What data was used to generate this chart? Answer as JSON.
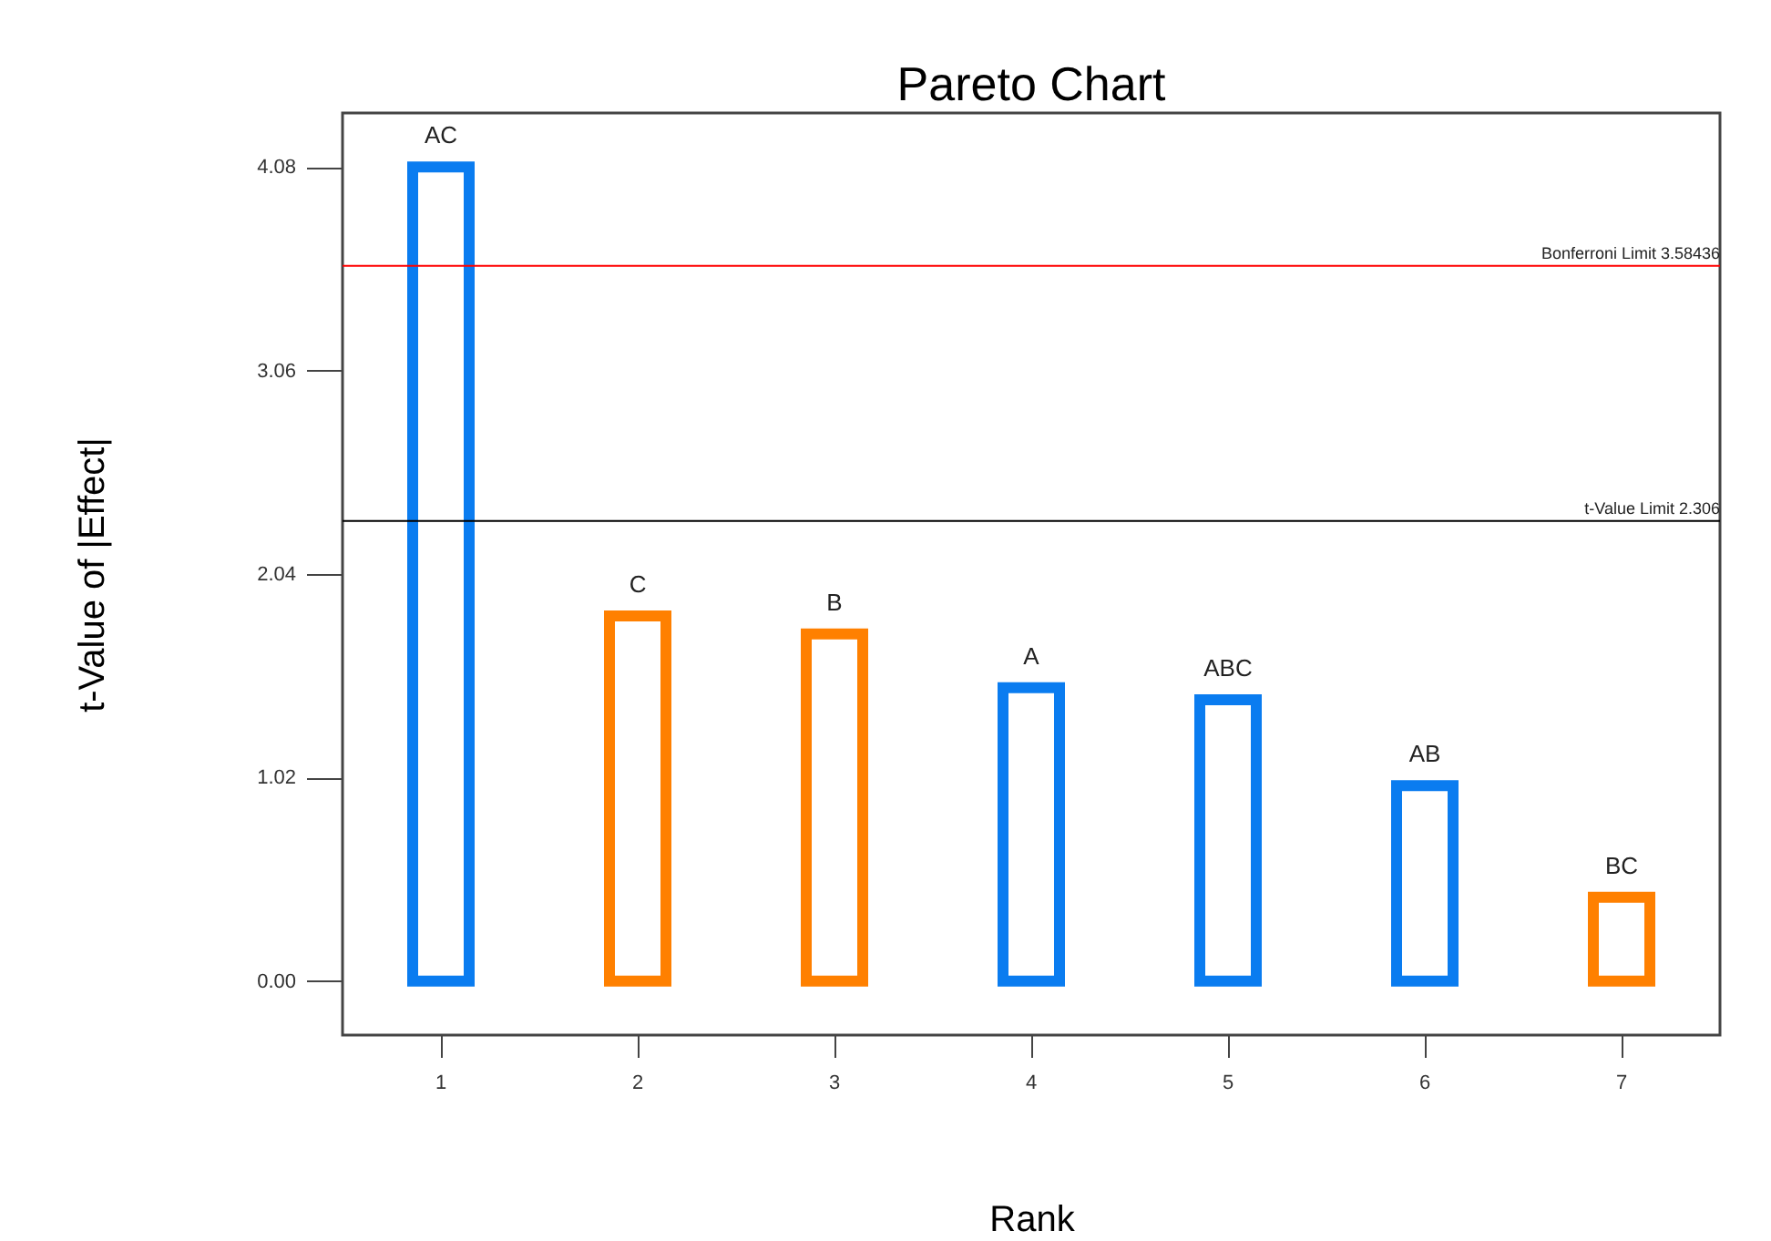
{
  "chart_data": {
    "type": "bar",
    "title": "Pareto Chart",
    "xlabel": "Rank",
    "ylabel": "t-Value of |Effect|",
    "categories": [
      "1",
      "2",
      "3",
      "4",
      "5",
      "6",
      "7"
    ],
    "values": [
      4.08,
      1.83,
      1.74,
      1.47,
      1.41,
      0.98,
      0.42
    ],
    "colors": [
      "#0a7cf0",
      "#ff8000",
      "#ff8000",
      "#0a7cf0",
      "#0a7cf0",
      "#0a7cf0",
      "#ff8000"
    ],
    "ylim": [
      -0.27,
      4.35
    ],
    "yticks": [
      {
        "value": 0,
        "label": "0.00"
      },
      1.02,
      2.04,
      3.06,
      4.08
    ],
    "grid": false,
    "annotations": [
      {
        "text": "AC",
        "x": "1",
        "y": 4.08
      },
      {
        "text": "C",
        "x": "2",
        "y": 1.83
      },
      {
        "text": "B",
        "x": "3",
        "y": 1.74
      },
      {
        "text": "A",
        "x": "4",
        "y": 1.47
      },
      {
        "text": "ABC",
        "x": "5",
        "y": 1.41
      },
      {
        "text": "AB",
        "x": "6",
        "y": 0.98
      },
      {
        "text": "BC",
        "x": "7",
        "y": 0.42
      }
    ],
    "ref_lines": [
      {
        "axis": "y",
        "value": 3.58436,
        "label": "Bonferroni Limit 3.58436",
        "color": "#ff0000"
      },
      {
        "axis": "y",
        "value": 2.306,
        "label": "t-Value Limit 2.306",
        "color": "#000000"
      }
    ]
  }
}
